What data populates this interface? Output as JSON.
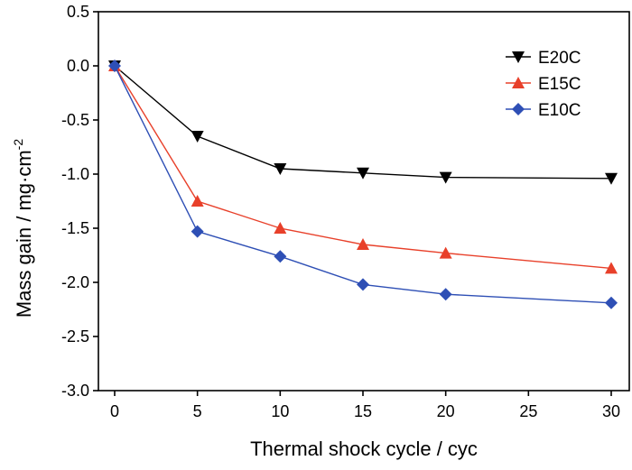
{
  "chart_data": {
    "type": "line",
    "x_label": "Thermal shock cycle / cyc",
    "y_label_main": "Mass gain / mg·cm",
    "y_label_sup": "-2",
    "x_ticks": [
      0,
      5,
      10,
      15,
      20,
      25,
      30
    ],
    "y_ticks": [
      "0.5",
      "0.0",
      "-0.5",
      "-1.0",
      "-1.5",
      "-2.0",
      "-2.5",
      "-3.0"
    ],
    "xlim": [
      0,
      30
    ],
    "ylim": [
      -3.0,
      0.5
    ],
    "grid": false,
    "legend_position": "top-right",
    "x": [
      0,
      5,
      10,
      15,
      20,
      30
    ],
    "series": [
      {
        "name": "E20C",
        "marker": "triangle-down",
        "color": "#000000",
        "values": [
          0.0,
          -0.65,
          -0.95,
          -0.99,
          -1.03,
          -1.04
        ]
      },
      {
        "name": "E15C",
        "marker": "triangle-up",
        "color": "#e8402a",
        "values": [
          0.0,
          -1.25,
          -1.5,
          -1.65,
          -1.73,
          -1.87
        ]
      },
      {
        "name": "E10C",
        "marker": "diamond",
        "color": "#2e4fb5",
        "values": [
          0.0,
          -1.53,
          -1.76,
          -2.02,
          -2.11,
          -2.19
        ]
      }
    ]
  }
}
